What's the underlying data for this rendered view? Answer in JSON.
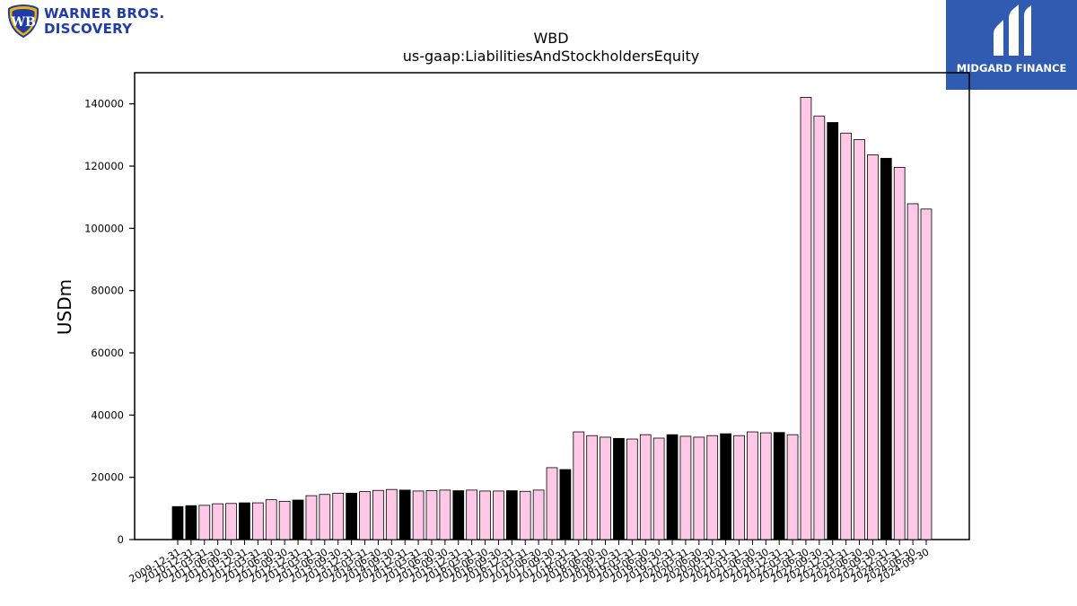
{
  "logos": {
    "left_text_line1": "WARNER BROS.",
    "left_text_line2": "DISCOVERY",
    "right_text": "MIDGARD FINANCE",
    "brand_blue": "#1f3ca8",
    "panel_blue": "#2f5bb0"
  },
  "chart_data": {
    "type": "bar",
    "title": "WBD",
    "subtitle": "us-gaap:LiabilitiesAndStockholdersEquity",
    "xlabel": "",
    "ylabel": "USDm",
    "ylim": [
      0,
      150000
    ],
    "yticks": [
      0,
      20000,
      40000,
      60000,
      80000,
      100000,
      120000,
      140000
    ],
    "grid": false,
    "colors": {
      "annual": "#000000",
      "quarter": "#ffc8e6"
    },
    "categories": [
      "2009-12-31",
      "2010-12-31",
      "2011-03-31",
      "2011-06-30",
      "2011-09-30",
      "2011-12-31",
      "2012-03-31",
      "2012-06-30",
      "2012-09-30",
      "2012-12-31",
      "2013-03-31",
      "2013-06-30",
      "2013-09-30",
      "2013-12-31",
      "2014-03-31",
      "2014-06-30",
      "2014-09-30",
      "2014-12-31",
      "2015-03-31",
      "2015-06-30",
      "2015-09-30",
      "2015-12-31",
      "2016-03-31",
      "2016-06-30",
      "2016-09-30",
      "2016-12-31",
      "2017-03-31",
      "2017-06-30",
      "2017-09-30",
      "2017-12-31",
      "2018-03-31",
      "2018-06-30",
      "2018-09-30",
      "2018-12-31",
      "2019-03-31",
      "2019-06-30",
      "2019-09-30",
      "2019-12-31",
      "2020-03-31",
      "2020-06-30",
      "2020-09-30",
      "2020-12-31",
      "2021-03-31",
      "2021-06-30",
      "2021-09-30",
      "2021-12-31",
      "2022-03-31",
      "2022-06-30",
      "2022-09-30",
      "2022-12-31",
      "2023-03-31",
      "2023-06-30",
      "2023-09-30",
      "2023-12-31",
      "2024-03-31",
      "2024-06-30",
      "2024-09-30"
    ],
    "values": [
      10600,
      10900,
      11000,
      11500,
      11600,
      11800,
      11800,
      12800,
      12300,
      12700,
      14100,
      14500,
      14900,
      14900,
      15400,
      15800,
      16100,
      15900,
      15600,
      15700,
      15900,
      15700,
      15900,
      15600,
      15600,
      15700,
      15500,
      15900,
      23100,
      22500,
      34600,
      33400,
      32900,
      32500,
      32300,
      33700,
      32600,
      33700,
      33200,
      32900,
      33400,
      34000,
      33400,
      34600,
      34300,
      34400,
      33700,
      142100,
      136100,
      134000,
      130600,
      128500,
      123600,
      122500,
      119600,
      107900,
      106200
    ],
    "annual": [
      true,
      true,
      false,
      false,
      false,
      true,
      false,
      false,
      false,
      true,
      false,
      false,
      false,
      true,
      false,
      false,
      false,
      true,
      false,
      false,
      false,
      true,
      false,
      false,
      false,
      true,
      false,
      false,
      false,
      true,
      false,
      false,
      false,
      true,
      false,
      false,
      false,
      true,
      false,
      false,
      false,
      true,
      false,
      false,
      false,
      true,
      false,
      false,
      false,
      true,
      false,
      false,
      false,
      true,
      false,
      false,
      false
    ]
  }
}
